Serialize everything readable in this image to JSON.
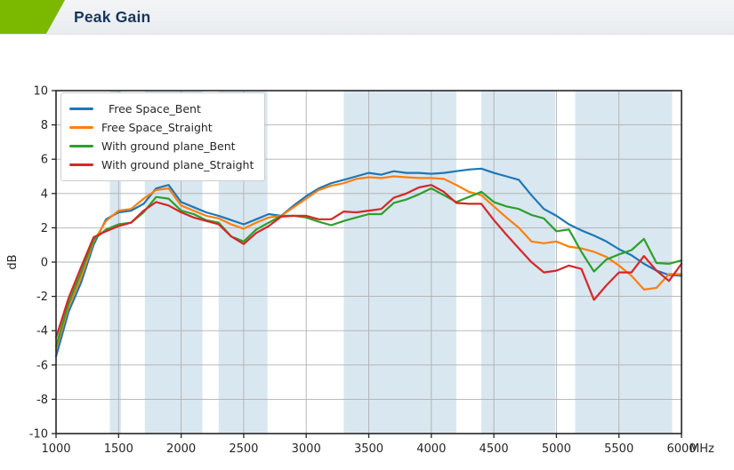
{
  "header": {
    "title": "Peak Gain",
    "accent_color": "#7ab900",
    "title_color": "#17365d"
  },
  "chart_data": {
    "type": "line",
    "title": "Peak Gain",
    "xlabel": "",
    "ylabel": "dB",
    "x_unit": "MHz",
    "xlim": [
      1000,
      6000
    ],
    "ylim": [
      -10,
      10
    ],
    "x_ticks": [
      1000,
      1500,
      2000,
      2500,
      3000,
      3500,
      4000,
      4500,
      5000,
      5500,
      6000
    ],
    "y_ticks": [
      10,
      8,
      6,
      4,
      2,
      0,
      -2,
      -4,
      -6,
      -8,
      -10
    ],
    "grid": true,
    "grid_color": "#b0b0b0",
    "axis_color": "#262626",
    "legend_position": "upper-left",
    "band_color": "#d9e7f0",
    "highlight_bands": [
      {
        "from": 1430,
        "to": 1520
      },
      {
        "from": 1710,
        "to": 2170
      },
      {
        "from": 2300,
        "to": 2690
      },
      {
        "from": 3300,
        "to": 4200
      },
      {
        "from": 4400,
        "to": 4990
      },
      {
        "from": 5150,
        "to": 5925
      }
    ],
    "x": [
      1000,
      1100,
      1200,
      1300,
      1400,
      1500,
      1600,
      1700,
      1800,
      1900,
      2000,
      2100,
      2200,
      2300,
      2400,
      2500,
      2600,
      2700,
      2800,
      2900,
      3000,
      3100,
      3200,
      3300,
      3400,
      3500,
      3600,
      3700,
      3800,
      3900,
      4000,
      4100,
      4200,
      4300,
      4400,
      4500,
      4600,
      4700,
      4800,
      4900,
      5000,
      5100,
      5200,
      5300,
      5400,
      5500,
      5600,
      5700,
      5800,
      5900,
      6000
    ],
    "series": [
      {
        "name": "  Free Space_Bent",
        "color": "#1f77b4",
        "values": [
          -5.5,
          -2.9,
          -1.2,
          1.0,
          2.5,
          2.9,
          3.0,
          3.4,
          4.3,
          4.5,
          3.5,
          3.2,
          2.9,
          2.7,
          2.45,
          2.2,
          2.5,
          2.8,
          2.7,
          3.3,
          3.85,
          4.3,
          4.6,
          4.8,
          5.0,
          5.2,
          5.1,
          5.3,
          5.2,
          5.2,
          5.15,
          5.2,
          5.3,
          5.4,
          5.45,
          5.2,
          5.0,
          4.8,
          3.9,
          3.1,
          2.7,
          2.2,
          1.85,
          1.55,
          1.2,
          0.75,
          0.4,
          -0.1,
          -0.5,
          -0.75,
          -0.8
        ]
      },
      {
        "name": "Free Space_Straight",
        "color": "#ff7f0e",
        "values": [
          -5.1,
          -2.6,
          -0.9,
          1.2,
          2.4,
          3.0,
          3.1,
          3.7,
          4.2,
          4.3,
          3.3,
          3.0,
          2.7,
          2.55,
          2.2,
          1.95,
          2.3,
          2.6,
          2.7,
          3.2,
          3.7,
          4.2,
          4.45,
          4.6,
          4.85,
          4.95,
          4.9,
          5.0,
          4.95,
          4.9,
          4.9,
          4.85,
          4.5,
          4.1,
          3.9,
          3.25,
          2.6,
          2.0,
          1.2,
          1.1,
          1.2,
          0.9,
          0.8,
          0.6,
          0.3,
          -0.2,
          -0.8,
          -1.6,
          -1.5,
          -0.7,
          -0.7
        ]
      },
      {
        "name": "With ground plane_Bent",
        "color": "#2ca02c",
        "values": [
          -4.9,
          -2.4,
          -0.6,
          1.3,
          1.9,
          2.2,
          2.3,
          2.9,
          3.8,
          3.7,
          3.0,
          2.8,
          2.45,
          2.3,
          1.5,
          1.2,
          1.9,
          2.3,
          2.7,
          2.7,
          2.6,
          2.35,
          2.15,
          2.4,
          2.6,
          2.8,
          2.8,
          3.45,
          3.65,
          3.95,
          4.3,
          3.9,
          3.5,
          3.8,
          4.1,
          3.5,
          3.25,
          3.1,
          2.75,
          2.55,
          1.8,
          1.9,
          0.6,
          -0.55,
          0.15,
          0.45,
          0.7,
          1.35,
          -0.05,
          -0.1,
          0.1
        ]
      },
      {
        "name": "With ground plane_Straight",
        "color": "#d62728",
        "values": [
          -4.4,
          -2.1,
          -0.3,
          1.45,
          1.8,
          2.1,
          2.3,
          3.0,
          3.5,
          3.3,
          2.9,
          2.6,
          2.4,
          2.2,
          1.5,
          1.05,
          1.7,
          2.1,
          2.65,
          2.7,
          2.7,
          2.5,
          2.5,
          2.95,
          2.9,
          3.0,
          3.1,
          3.75,
          4.0,
          4.35,
          4.5,
          4.1,
          3.45,
          3.4,
          3.4,
          2.45,
          1.6,
          0.8,
          0.0,
          -0.6,
          -0.5,
          -0.2,
          -0.4,
          -2.2,
          -1.35,
          -0.6,
          -0.6,
          0.35,
          -0.5,
          -1.1,
          -0.1
        ]
      }
    ]
  }
}
